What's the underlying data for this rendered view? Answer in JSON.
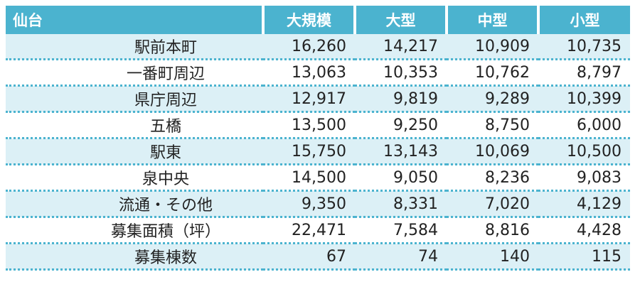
{
  "table": {
    "header": [
      "仙台",
      "大規模",
      "大型",
      "中型",
      "小型"
    ],
    "rows": [
      [
        "駅前本町",
        "16,260",
        "14,217",
        "10,909",
        "10,735"
      ],
      [
        "一番町周辺",
        "13,063",
        "10,353",
        "10,762",
        "8,797"
      ],
      [
        "県庁周辺",
        "12,917",
        "9,819",
        "9,289",
        "10,399"
      ],
      [
        "五橋",
        "13,500",
        "9,250",
        "8,750",
        "6,000"
      ],
      [
        "駅東",
        "15,750",
        "13,143",
        "10,069",
        "10,500"
      ],
      [
        "泉中央",
        "14,500",
        "9,050",
        "8,236",
        "9,083"
      ],
      [
        "流通・その他",
        "9,350",
        "8,331",
        "7,020",
        "4,129"
      ],
      [
        "募集面積（坪）",
        "22,471",
        "7,584",
        "8,816",
        "4,428"
      ],
      [
        "募集棟数",
        "67",
        "74",
        "140",
        "115"
      ]
    ]
  }
}
